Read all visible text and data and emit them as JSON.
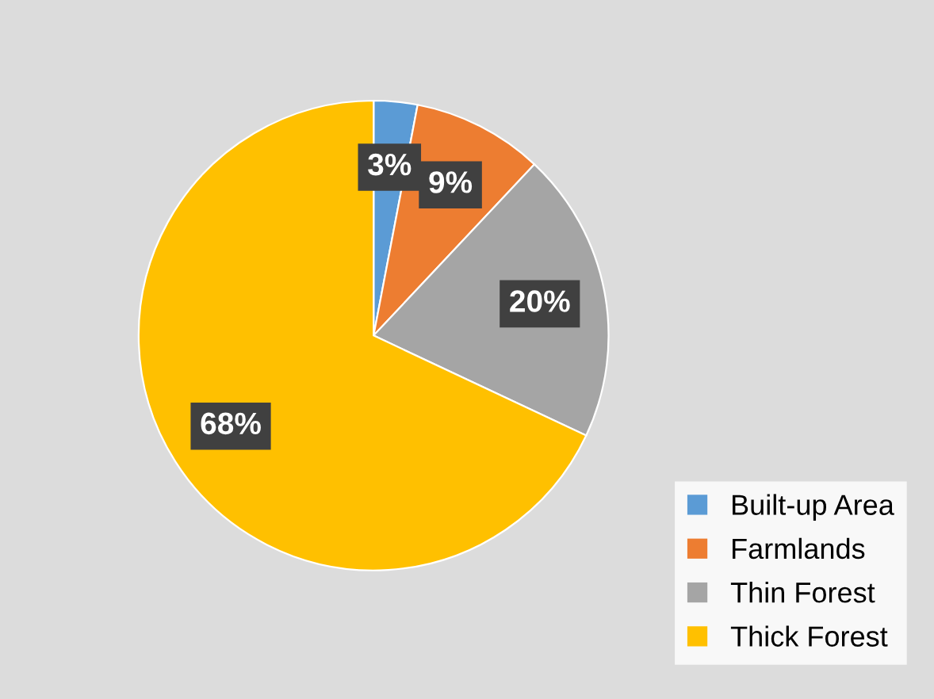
{
  "chart_data": {
    "type": "pie",
    "categories": [
      "Built-up Area",
      "Farmlands",
      "Thin Forest",
      "Thick Forest"
    ],
    "values": [
      3,
      9,
      20,
      68
    ],
    "colors": [
      "#5b9bd5",
      "#ed7d31",
      "#a5a5a5",
      "#ffc000"
    ],
    "value_labels": [
      "3%",
      "9%",
      "20%",
      "68%"
    ],
    "legend": "bottom right"
  }
}
